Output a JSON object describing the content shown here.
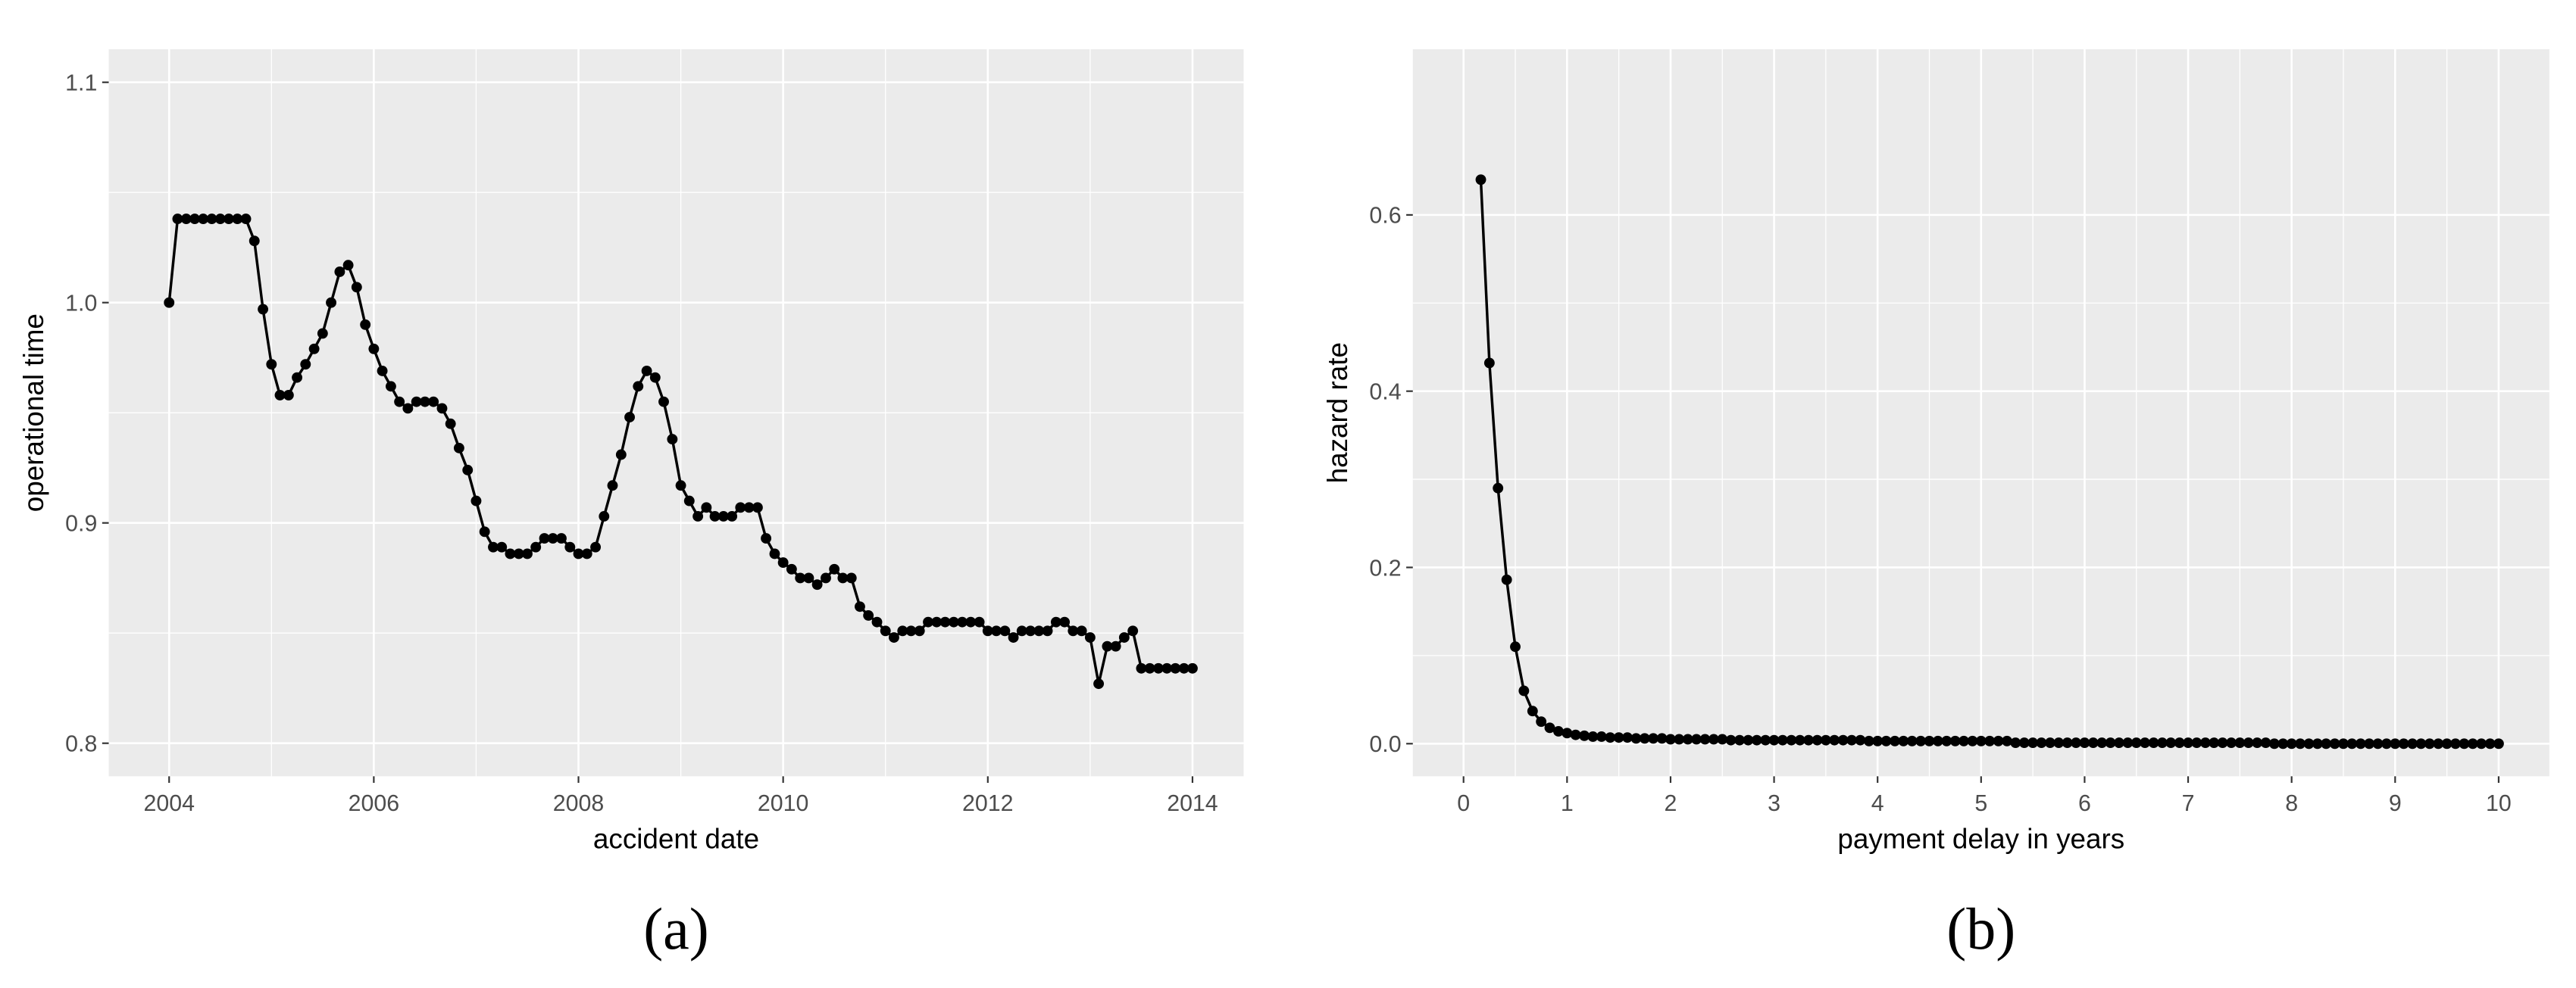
{
  "chart_data": [
    {
      "type": "line",
      "caption": "(a)",
      "x_label": "accident date",
      "y_label": "operational time",
      "color": "#000000",
      "grid": true,
      "xlim": [
        2003.41,
        2014.5
      ],
      "xticks": [
        2004,
        2006,
        2008,
        2010,
        2012,
        2014
      ],
      "ylim": [
        0.785,
        1.115
      ],
      "yticks": [
        0.8,
        0.9,
        {
          "value": 1,
          "label": "1.0"
        },
        1.1
      ],
      "x": [
        2004,
        2004.083,
        2004.167,
        2004.25,
        2004.333,
        2004.417,
        2004.5,
        2004.583,
        2004.667,
        2004.75,
        2004.833,
        2004.917,
        2005,
        2005.083,
        2005.167,
        2005.25,
        2005.333,
        2005.417,
        2005.5,
        2005.583,
        2005.667,
        2005.75,
        2005.833,
        2005.917,
        2006,
        2006.083,
        2006.167,
        2006.25,
        2006.333,
        2006.417,
        2006.5,
        2006.583,
        2006.667,
        2006.75,
        2006.833,
        2006.917,
        2007,
        2007.083,
        2007.167,
        2007.25,
        2007.333,
        2007.417,
        2007.5,
        2007.583,
        2007.667,
        2007.75,
        2007.833,
        2007.917,
        2008,
        2008.083,
        2008.167,
        2008.25,
        2008.333,
        2008.417,
        2008.5,
        2008.583,
        2008.667,
        2008.75,
        2008.833,
        2008.917,
        2009,
        2009.083,
        2009.167,
        2009.25,
        2009.333,
        2009.417,
        2009.5,
        2009.583,
        2009.667,
        2009.75,
        2009.833,
        2009.917,
        2010,
        2010.083,
        2010.167,
        2010.25,
        2010.333,
        2010.417,
        2010.5,
        2010.583,
        2010.667,
        2010.75,
        2010.833,
        2010.917,
        2011,
        2011.083,
        2011.167,
        2011.25,
        2011.333,
        2011.417,
        2011.5,
        2011.583,
        2011.667,
        2011.75,
        2011.833,
        2011.917,
        2012,
        2012.083,
        2012.167,
        2012.25,
        2012.333,
        2012.417,
        2012.5,
        2012.583,
        2012.667,
        2012.75,
        2012.833,
        2012.917,
        2013,
        2013.083,
        2013.167,
        2013.25,
        2013.333,
        2013.417,
        2013.5,
        2013.583,
        2013.667,
        2013.75,
        2013.833,
        2013.917,
        2014
      ],
      "values": [
        1,
        1.038,
        1.038,
        1.038,
        1.038,
        1.038,
        1.038,
        1.038,
        1.038,
        1.038,
        1.028,
        0.997,
        0.972,
        0.958,
        0.958,
        0.966,
        0.972,
        0.979,
        0.986,
        1,
        1.014,
        1.017,
        1.007,
        0.99,
        0.979,
        0.969,
        0.962,
        0.955,
        0.952,
        0.955,
        0.955,
        0.955,
        0.952,
        0.945,
        0.934,
        0.924,
        0.91,
        0.896,
        0.889,
        0.889,
        0.886,
        0.886,
        0.886,
        0.889,
        0.893,
        0.893,
        0.893,
        0.889,
        0.886,
        0.886,
        0.889,
        0.903,
        0.917,
        0.931,
        0.948,
        0.962,
        0.969,
        0.966,
        0.955,
        0.938,
        0.917,
        0.91,
        0.903,
        0.907,
        0.903,
        0.903,
        0.903,
        0.907,
        0.907,
        0.907,
        0.893,
        0.886,
        0.882,
        0.879,
        0.875,
        0.875,
        0.872,
        0.875,
        0.879,
        0.875,
        0.875,
        0.862,
        0.858,
        0.855,
        0.851,
        0.848,
        0.851,
        0.851,
        0.851,
        0.855,
        0.855,
        0.855,
        0.855,
        0.855,
        0.855,
        0.855,
        0.851,
        0.851,
        0.851,
        0.848,
        0.851,
        0.851,
        0.851,
        0.851,
        0.855,
        0.855,
        0.851,
        0.851,
        0.848,
        0.827,
        0.844,
        0.844,
        0.848,
        0.851,
        0.834,
        0.834,
        0.834,
        0.834,
        0.834,
        0.834,
        0.834
      ]
    },
    {
      "type": "line",
      "caption": "(b)",
      "x_label": "payment delay in years",
      "y_label": "hazard rate",
      "color": "#000000",
      "grid": true,
      "xlim": [
        -0.49,
        10.49
      ],
      "xticks": [
        0,
        1,
        2,
        3,
        4,
        5,
        6,
        7,
        8,
        9,
        10
      ],
      "ylim": [
        -0.037,
        0.788
      ],
      "yticks": [
        {
          "value": 0,
          "label": "0.0"
        },
        0.2,
        0.4,
        0.6
      ],
      "x": [
        0.167,
        0.25,
        0.333,
        0.417,
        0.5,
        0.583,
        0.667,
        0.75,
        0.833,
        0.917,
        1,
        1.083,
        1.167,
        1.25,
        1.333,
        1.417,
        1.5,
        1.583,
        1.667,
        1.75,
        1.833,
        1.917,
        2,
        2.083,
        2.167,
        2.25,
        2.333,
        2.417,
        2.5,
        2.583,
        2.667,
        2.75,
        2.833,
        2.917,
        3,
        3.083,
        3.167,
        3.25,
        3.333,
        3.417,
        3.5,
        3.583,
        3.667,
        3.75,
        3.833,
        3.917,
        4,
        4.083,
        4.167,
        4.25,
        4.333,
        4.417,
        4.5,
        4.583,
        4.667,
        4.75,
        4.833,
        4.917,
        5,
        5.083,
        5.167,
        5.25,
        5.333,
        5.417,
        5.5,
        5.583,
        5.667,
        5.75,
        5.833,
        5.917,
        6,
        6.083,
        6.167,
        6.25,
        6.333,
        6.417,
        6.5,
        6.583,
        6.667,
        6.75,
        6.833,
        6.917,
        7,
        7.083,
        7.167,
        7.25,
        7.333,
        7.417,
        7.5,
        7.583,
        7.667,
        7.75,
        7.833,
        7.917,
        8,
        8.083,
        8.167,
        8.25,
        8.333,
        8.417,
        8.5,
        8.583,
        8.667,
        8.75,
        8.833,
        8.917,
        9,
        9.083,
        9.167,
        9.25,
        9.333,
        9.417,
        9.5,
        9.583,
        9.667,
        9.75,
        9.833,
        9.917,
        10
      ],
      "values": [
        0.64,
        0.432,
        0.29,
        0.186,
        0.11,
        0.06,
        0.037,
        0.025,
        0.018,
        0.014,
        0.012,
        0.01,
        0.009,
        0.008,
        0.008,
        0.007,
        0.007,
        0.007,
        0.006,
        0.006,
        0.006,
        0.006,
        0.005,
        0.005,
        0.005,
        0.005,
        0.005,
        0.005,
        0.005,
        0.004,
        0.004,
        0.004,
        0.004,
        0.004,
        0.004,
        0.004,
        0.004,
        0.004,
        0.004,
        0.004,
        0.004,
        0.004,
        0.004,
        0.004,
        0.004,
        0.003,
        0.003,
        0.003,
        0.003,
        0.003,
        0.003,
        0.003,
        0.003,
        0.003,
        0.003,
        0.003,
        0.003,
        0.003,
        0.003,
        0.003,
        0.003,
        0.003,
        0.001,
        0.001,
        0.001,
        0.001,
        0.001,
        0.001,
        0.001,
        0.001,
        0.001,
        0.001,
        0.001,
        0.001,
        0.001,
        0.001,
        0.001,
        0.001,
        0.001,
        0.001,
        0.001,
        0.001,
        0.001,
        0.001,
        0.001,
        0.001,
        0.001,
        0.001,
        0.001,
        0.001,
        0.001,
        0.001,
        0,
        0,
        0,
        0,
        0,
        0,
        0,
        0,
        0,
        0,
        0,
        0,
        0,
        0,
        0,
        0,
        0,
        0,
        0,
        0,
        0,
        0,
        0,
        0,
        0,
        0,
        0
      ]
    }
  ]
}
